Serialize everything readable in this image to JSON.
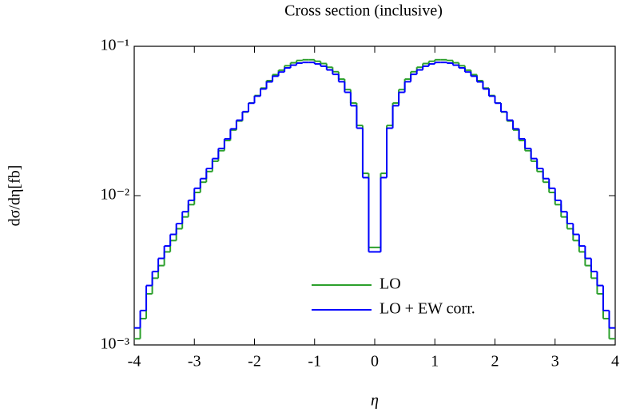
{
  "chart_data": {
    "type": "histogram",
    "title": "Cross section (inclusive)",
    "x_label": "η",
    "y_label": "dσ/dη[fb]",
    "log_y": true,
    "legend": "lower right",
    "xlim": [
      -4,
      4
    ],
    "xticks": [
      -4,
      -3,
      -2,
      -1,
      0,
      1,
      2,
      3,
      4
    ],
    "ylim": [
      0.001,
      0.1
    ],
    "yticks": [
      {
        "value": 0.001,
        "label": "10⁻³"
      },
      {
        "value": 0.01,
        "label": "10⁻²"
      },
      {
        "value": 0.1,
        "label": "10⁻¹"
      }
    ],
    "bins": [
      -4,
      -3.9,
      -3.8,
      -3.7,
      -3.6,
      -3.5,
      -3.4,
      -3.3,
      -3.2,
      -3.1,
      -3,
      -2.9,
      -2.8,
      -2.7,
      -2.6,
      -2.5,
      -2.4,
      -2.3,
      -2.2,
      -2.1,
      -2,
      -1.9,
      -1.8,
      -1.7,
      -1.6,
      -1.5,
      -1.4,
      -1.3,
      -1.2,
      -1.1,
      -1,
      -0.9,
      -0.8,
      -0.7,
      -0.6,
      -0.5,
      -0.4,
      -0.3,
      -0.2,
      -0.1,
      0,
      0.1,
      0.2,
      0.3,
      0.4,
      0.5,
      0.6,
      0.7,
      0.8,
      0.9,
      1,
      1.1,
      1.2,
      1.3,
      1.4,
      1.5,
      1.6,
      1.7,
      1.8,
      1.9,
      2,
      2.1,
      2.2,
      2.3,
      2.4,
      2.5,
      2.6,
      2.7,
      2.8,
      2.9,
      3,
      3.1,
      3.2,
      3.3,
      3.4,
      3.5,
      3.6,
      3.7,
      3.8,
      3.9,
      4
    ],
    "series": [
      {
        "name": "LO",
        "color": "#2ca02c",
        "values": [
          0.0011,
          0.0015,
          0.0022,
          0.0028,
          0.0034,
          0.0042,
          0.005,
          0.006,
          0.0072,
          0.0087,
          0.0105,
          0.0123,
          0.0145,
          0.017,
          0.02,
          0.0234,
          0.0275,
          0.0316,
          0.0363,
          0.0417,
          0.0468,
          0.0525,
          0.0589,
          0.0646,
          0.0692,
          0.0741,
          0.0776,
          0.0804,
          0.0813,
          0.0813,
          0.0794,
          0.0767,
          0.0724,
          0.0676,
          0.0603,
          0.0513,
          0.0417,
          0.0295,
          0.0141,
          0.0045,
          0.0045,
          0.0141,
          0.0295,
          0.0417,
          0.0513,
          0.0603,
          0.0676,
          0.0724,
          0.0767,
          0.0794,
          0.0813,
          0.0813,
          0.0804,
          0.0776,
          0.0741,
          0.0692,
          0.0646,
          0.0589,
          0.0525,
          0.0468,
          0.0417,
          0.0363,
          0.0316,
          0.0275,
          0.0234,
          0.02,
          0.017,
          0.0145,
          0.0123,
          0.0105,
          0.0087,
          0.0072,
          0.006,
          0.005,
          0.0042,
          0.0034,
          0.0028,
          0.0022,
          0.0015,
          0.0011
        ]
      },
      {
        "name": "LO + EW corr.",
        "color": "#0000ff",
        "values": [
          0.0013,
          0.0017,
          0.0025,
          0.0031,
          0.0038,
          0.0046,
          0.0055,
          0.0065,
          0.0078,
          0.0093,
          0.0112,
          0.013,
          0.0152,
          0.0177,
          0.0207,
          0.024,
          0.028,
          0.032,
          0.0365,
          0.0416,
          0.0464,
          0.0518,
          0.0578,
          0.0631,
          0.0673,
          0.0717,
          0.0748,
          0.0772,
          0.078,
          0.078,
          0.0762,
          0.0736,
          0.0695,
          0.0649,
          0.0579,
          0.0492,
          0.04,
          0.0283,
          0.0132,
          0.0042,
          0.0042,
          0.0132,
          0.0283,
          0.04,
          0.0492,
          0.0579,
          0.0649,
          0.0695,
          0.0736,
          0.0762,
          0.078,
          0.078,
          0.0772,
          0.0748,
          0.0717,
          0.0673,
          0.0631,
          0.0578,
          0.0518,
          0.0464,
          0.0416,
          0.0365,
          0.032,
          0.028,
          0.024,
          0.0207,
          0.0177,
          0.0152,
          0.013,
          0.0112,
          0.0093,
          0.0078,
          0.0065,
          0.0055,
          0.0046,
          0.0038,
          0.0031,
          0.0025,
          0.0017,
          0.0013
        ]
      }
    ]
  }
}
